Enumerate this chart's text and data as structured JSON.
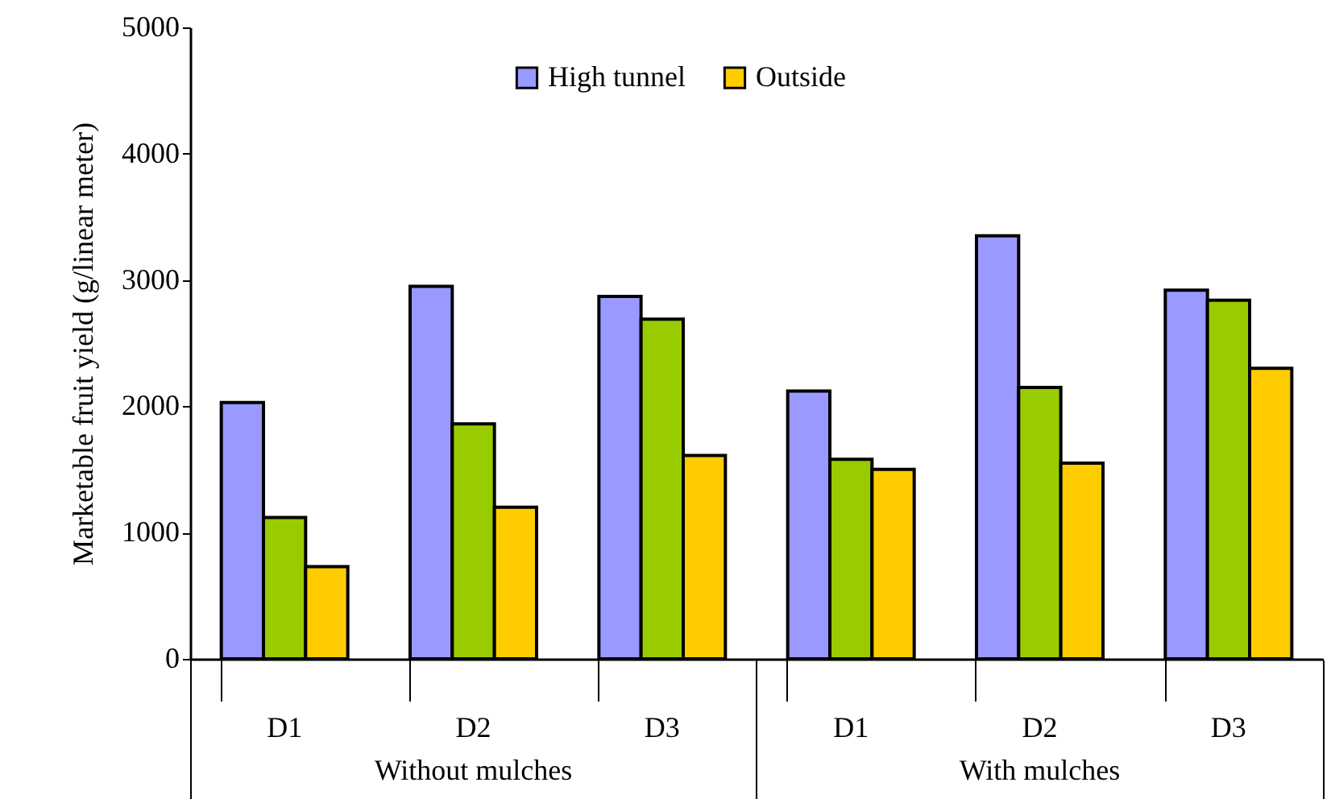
{
  "chart_data": {
    "type": "bar",
    "ylabel": "Marketable fruit yield (g/linear meter)",
    "categories": [
      "D1",
      "D2",
      "D3",
      "D1",
      "D2",
      "D3"
    ],
    "series": [
      {
        "name": "High tunnel",
        "color": "#9999ff",
        "values": [
          2030,
          2950,
          2870,
          2120,
          3350,
          2920
        ]
      },
      {
        "color": "#99cc00",
        "values": [
          1120,
          1860,
          2690,
          1580,
          2150,
          2840
        ]
      },
      {
        "name": "Outside",
        "color": "#ffcc00",
        "values": [
          730,
          1200,
          1610,
          1500,
          1550,
          2300
        ]
      }
    ],
    "annotations": [
      "Without mulches",
      "With mulches"
    ],
    "ylim": [
      0,
      5000
    ],
    "yticks": [
      0,
      1000,
      2000,
      3000,
      4000,
      5000
    ],
    "grid": false,
    "legend": "top"
  }
}
